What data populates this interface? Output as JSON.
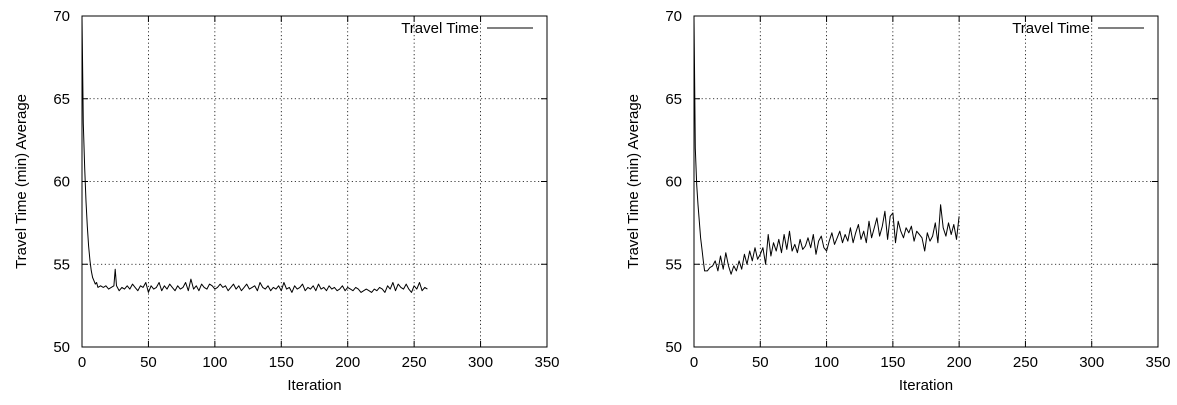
{
  "chart_data": [
    {
      "type": "line",
      "xlabel": "Iteration",
      "ylabel": "Travel Time (min) Average",
      "xlim": [
        0,
        350
      ],
      "ylim": [
        50,
        70
      ],
      "xticks": [
        0,
        50,
        100,
        150,
        200,
        250,
        300,
        350
      ],
      "yticks": [
        50,
        55,
        60,
        65,
        70
      ],
      "grid": true,
      "legend_position": "top-right",
      "series": [
        {
          "name": "Travel Time",
          "color": "#000000",
          "x": [
            0,
            1,
            2,
            3,
            4,
            5,
            6,
            7,
            8,
            9,
            10,
            11,
            12,
            14,
            16,
            18,
            20,
            22,
            24,
            25,
            26,
            28,
            30,
            32,
            34,
            36,
            38,
            40,
            42,
            44,
            46,
            48,
            50,
            52,
            54,
            56,
            58,
            60,
            62,
            64,
            66,
            68,
            70,
            72,
            74,
            76,
            78,
            80,
            82,
            84,
            86,
            88,
            90,
            92,
            94,
            96,
            98,
            100,
            102,
            104,
            106,
            108,
            110,
            112,
            114,
            116,
            118,
            120,
            122,
            124,
            126,
            128,
            130,
            132,
            134,
            136,
            138,
            140,
            142,
            144,
            146,
            148,
            150,
            152,
            154,
            156,
            158,
            160,
            162,
            164,
            166,
            168,
            170,
            172,
            174,
            176,
            178,
            180,
            182,
            184,
            186,
            188,
            190,
            192,
            194,
            196,
            198,
            200,
            202,
            204,
            206,
            208,
            210,
            212,
            214,
            216,
            218,
            220,
            222,
            224,
            226,
            228,
            230,
            232,
            234,
            236,
            238,
            240,
            242,
            244,
            246,
            248,
            250,
            252,
            254,
            256,
            258,
            260
          ],
          "y": [
            70,
            63.5,
            60.8,
            58.8,
            57.3,
            56.1,
            55.2,
            54.6,
            54.2,
            54.0,
            53.8,
            53.9,
            53.6,
            53.7,
            53.6,
            53.7,
            53.5,
            53.6,
            53.7,
            54.7,
            53.7,
            53.4,
            53.6,
            53.5,
            53.7,
            53.5,
            53.8,
            53.6,
            53.4,
            53.7,
            53.6,
            53.9,
            53.3,
            53.7,
            53.5,
            53.6,
            53.9,
            53.4,
            53.7,
            53.5,
            53.8,
            53.6,
            53.4,
            53.7,
            53.5,
            53.6,
            53.9,
            53.4,
            54.1,
            53.5,
            53.7,
            53.4,
            53.8,
            53.6,
            53.5,
            53.8,
            53.7,
            53.5,
            53.6,
            53.8,
            53.6,
            53.7,
            53.4,
            53.6,
            53.8,
            53.5,
            53.7,
            53.4,
            53.6,
            53.8,
            53.5,
            53.6,
            53.7,
            53.4,
            53.9,
            53.6,
            53.5,
            53.7,
            53.4,
            53.6,
            53.5,
            53.7,
            53.4,
            53.9,
            53.5,
            53.6,
            53.3,
            53.7,
            53.5,
            53.6,
            53.8,
            53.4,
            53.6,
            53.5,
            53.7,
            53.4,
            53.8,
            53.5,
            53.6,
            53.4,
            53.7,
            53.5,
            53.6,
            53.4,
            53.5,
            53.7,
            53.4,
            53.6,
            53.5,
            53.4,
            53.6,
            53.5,
            53.3,
            53.4,
            53.5,
            53.4,
            53.3,
            53.5,
            53.4,
            53.6,
            53.5,
            53.3,
            53.7,
            53.5,
            53.9,
            53.4,
            53.8,
            53.6,
            53.5,
            53.8,
            53.5,
            53.3,
            53.7,
            53.5,
            53.9,
            53.4,
            53.6,
            53.5
          ]
        }
      ]
    },
    {
      "type": "line",
      "xlabel": "Iteration",
      "ylabel": "Travel Time (min) Average",
      "xlim": [
        0,
        350
      ],
      "ylim": [
        50,
        70
      ],
      "xticks": [
        0,
        50,
        100,
        150,
        200,
        250,
        300,
        350
      ],
      "yticks": [
        50,
        55,
        60,
        65,
        70
      ],
      "grid": true,
      "legend_position": "top-right",
      "series": [
        {
          "name": "Travel Time",
          "color": "#000000",
          "x": [
            0,
            1,
            2,
            3,
            4,
            5,
            6,
            7,
            8,
            10,
            12,
            14,
            16,
            18,
            20,
            22,
            24,
            26,
            28,
            30,
            32,
            34,
            36,
            38,
            40,
            42,
            44,
            46,
            48,
            50,
            52,
            54,
            56,
            58,
            60,
            62,
            64,
            66,
            68,
            70,
            72,
            74,
            76,
            78,
            80,
            82,
            84,
            86,
            88,
            90,
            92,
            94,
            96,
            98,
            100,
            102,
            104,
            106,
            108,
            110,
            112,
            114,
            116,
            118,
            120,
            122,
            124,
            126,
            128,
            130,
            132,
            134,
            136,
            138,
            140,
            142,
            144,
            146,
            148,
            150,
            152,
            154,
            156,
            158,
            160,
            162,
            164,
            166,
            168,
            170,
            172,
            174,
            176,
            178,
            180,
            182,
            184,
            186,
            188,
            190,
            192,
            194,
            196,
            198,
            200
          ],
          "y": [
            70,
            62.0,
            59.8,
            58.6,
            57.6,
            56.6,
            55.9,
            55.2,
            54.6,
            54.6,
            54.8,
            54.9,
            55.2,
            54.6,
            55.5,
            54.7,
            55.7,
            54.9,
            54.4,
            54.9,
            54.6,
            55.2,
            54.7,
            55.6,
            55.0,
            55.8,
            55.2,
            56.0,
            55.3,
            55.6,
            56.0,
            55.0,
            56.8,
            55.5,
            56.3,
            55.8,
            56.5,
            55.7,
            56.8,
            55.9,
            57.0,
            55.8,
            56.2,
            55.7,
            56.5,
            55.9,
            56.1,
            56.6,
            56.0,
            56.8,
            55.6,
            56.4,
            56.7,
            56.0,
            55.8,
            56.4,
            56.9,
            56.2,
            56.6,
            57.0,
            56.3,
            56.8,
            56.4,
            57.2,
            56.3,
            56.9,
            57.4,
            56.5,
            57.0,
            56.3,
            57.6,
            56.6,
            57.2,
            57.8,
            56.7,
            57.3,
            58.2,
            56.5,
            57.9,
            58.1,
            56.3,
            57.6,
            57.0,
            56.6,
            57.2,
            56.9,
            57.3,
            56.4,
            57.0,
            56.8,
            56.6,
            55.8,
            56.9,
            56.4,
            56.7,
            57.5,
            56.3,
            58.6,
            57.2,
            56.7,
            57.5,
            56.8,
            57.4,
            56.5,
            57.9
          ]
        }
      ]
    }
  ]
}
